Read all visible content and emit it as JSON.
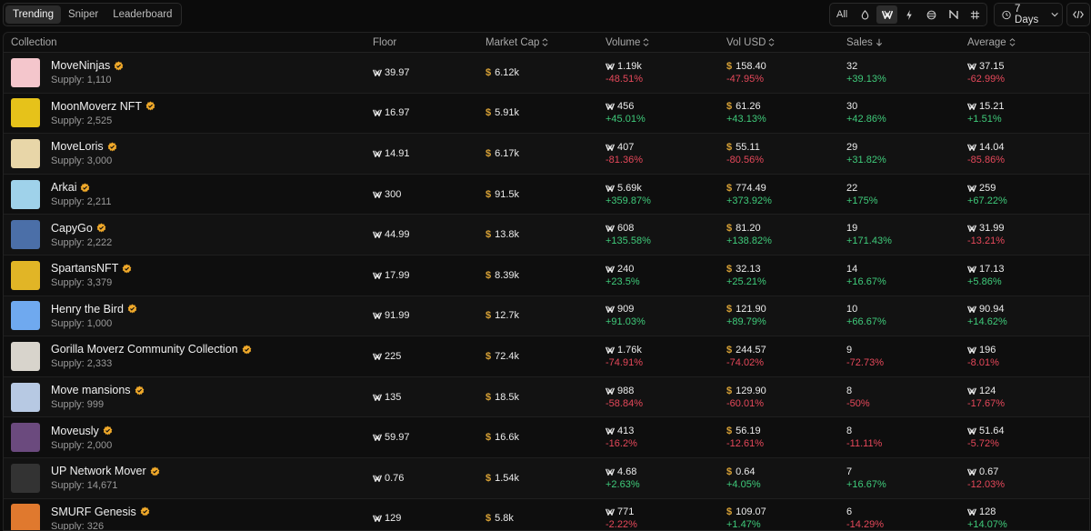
{
  "tabs": [
    {
      "label": "Trending",
      "active": true
    },
    {
      "label": "Sniper",
      "active": false
    },
    {
      "label": "Leaderboard",
      "active": false
    }
  ],
  "filters": {
    "all_label": "All",
    "icons": [
      "droplet-icon",
      "move-icon",
      "bolt-icon",
      "globe-icon",
      "n-icon",
      "hash-icon"
    ],
    "active": "move-icon"
  },
  "period": {
    "label": "7 Days"
  },
  "columns": {
    "collection": "Collection",
    "floor": "Floor",
    "market_cap": "Market Cap",
    "volume": "Volume",
    "vol_usd": "Vol USD",
    "sales": "Sales",
    "average": "Average"
  },
  "rows": [
    {
      "name": "MoveNinjas",
      "supply": "Supply: 1,110",
      "floor": "39.97",
      "mcap": "6.12k",
      "vol": "1.19k",
      "vol_chg": "-48.51%",
      "usd": "158.40",
      "usd_chg": "-47.95%",
      "sales": "32",
      "sales_chg": "+39.13%",
      "avg": "37.15",
      "avg_chg": "-62.99%",
      "color": "#f4c6cc"
    },
    {
      "name": "MoonMoverz NFT",
      "supply": "Supply: 2,525",
      "floor": "16.97",
      "mcap": "5.91k",
      "vol": "456",
      "vol_chg": "+45.01%",
      "usd": "61.26",
      "usd_chg": "+43.13%",
      "sales": "30",
      "sales_chg": "+42.86%",
      "avg": "15.21",
      "avg_chg": "+1.51%",
      "color": "#e6c21a"
    },
    {
      "name": "MoveLoris",
      "supply": "Supply: 3,000",
      "floor": "14.91",
      "mcap": "6.17k",
      "vol": "407",
      "vol_chg": "-81.36%",
      "usd": "55.11",
      "usd_chg": "-80.56%",
      "sales": "29",
      "sales_chg": "+31.82%",
      "avg": "14.04",
      "avg_chg": "-85.86%",
      "color": "#e8d6a8"
    },
    {
      "name": "Arkai",
      "supply": "Supply: 2,211",
      "floor": "300",
      "mcap": "91.5k",
      "vol": "5.69k",
      "vol_chg": "+359.87%",
      "usd": "774.49",
      "usd_chg": "+373.92%",
      "sales": "22",
      "sales_chg": "+175%",
      "avg": "259",
      "avg_chg": "+67.22%",
      "color": "#9fd2ea"
    },
    {
      "name": "CapyGo",
      "supply": "Supply: 2,222",
      "floor": "44.99",
      "mcap": "13.8k",
      "vol": "608",
      "vol_chg": "+135.58%",
      "usd": "81.20",
      "usd_chg": "+138.82%",
      "sales": "19",
      "sales_chg": "+171.43%",
      "avg": "31.99",
      "avg_chg": "-13.21%",
      "color": "#4b6fa8"
    },
    {
      "name": "SpartansNFT",
      "supply": "Supply: 3,379",
      "floor": "17.99",
      "mcap": "8.39k",
      "vol": "240",
      "vol_chg": "+23.5%",
      "usd": "32.13",
      "usd_chg": "+25.21%",
      "sales": "14",
      "sales_chg": "+16.67%",
      "avg": "17.13",
      "avg_chg": "+5.86%",
      "color": "#e1b526"
    },
    {
      "name": "Henry the Bird",
      "supply": "Supply: 1,000",
      "floor": "91.99",
      "mcap": "12.7k",
      "vol": "909",
      "vol_chg": "+91.03%",
      "usd": "121.90",
      "usd_chg": "+89.79%",
      "sales": "10",
      "sales_chg": "+66.67%",
      "avg": "90.94",
      "avg_chg": "+14.62%",
      "color": "#6fa9ef"
    },
    {
      "name": "Gorilla Moverz Community Collection",
      "supply": "Supply: 2,333",
      "floor": "225",
      "mcap": "72.4k",
      "vol": "1.76k",
      "vol_chg": "-74.91%",
      "usd": "244.57",
      "usd_chg": "-74.02%",
      "sales": "9",
      "sales_chg": "-72.73%",
      "avg": "196",
      "avg_chg": "-8.01%",
      "color": "#d8d4cc"
    },
    {
      "name": "Move mansions",
      "supply": "Supply: 999",
      "floor": "135",
      "mcap": "18.5k",
      "vol": "988",
      "vol_chg": "-58.84%",
      "usd": "129.90",
      "usd_chg": "-60.01%",
      "sales": "8",
      "sales_chg": "-50%",
      "avg": "124",
      "avg_chg": "-17.67%",
      "color": "#b7c9e3"
    },
    {
      "name": "Moveusly",
      "supply": "Supply: 2,000",
      "floor": "59.97",
      "mcap": "16.6k",
      "vol": "413",
      "vol_chg": "-16.2%",
      "usd": "56.19",
      "usd_chg": "-12.61%",
      "sales": "8",
      "sales_chg": "-11.11%",
      "avg": "51.64",
      "avg_chg": "-5.72%",
      "color": "#6b4a7e"
    },
    {
      "name": "UP Network Mover",
      "supply": "Supply: 14,671",
      "floor": "0.76",
      "mcap": "1.54k",
      "vol": "4.68",
      "vol_chg": "+2.63%",
      "usd": "0.64",
      "usd_chg": "+4.05%",
      "sales": "7",
      "sales_chg": "+16.67%",
      "avg": "0.67",
      "avg_chg": "-12.03%",
      "color": "#333333"
    },
    {
      "name": "SMURF Genesis",
      "supply": "Supply: 326",
      "floor": "129",
      "mcap": "5.8k",
      "vol": "771",
      "vol_chg": "-2.22%",
      "usd": "109.07",
      "usd_chg": "+1.47%",
      "sales": "6",
      "sales_chg": "-14.29%",
      "avg": "128",
      "avg_chg": "+14.07%",
      "color": "#e0792e"
    }
  ]
}
